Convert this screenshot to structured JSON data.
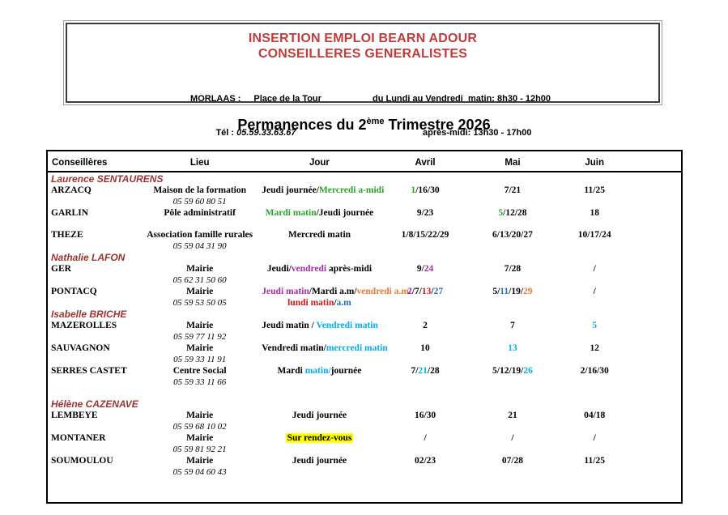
{
  "colors": {
    "black": "#000000",
    "green": "#2DA32D",
    "magenta": "#A82BA4",
    "red": "#CE1A1A",
    "blue": "#1F6FC5",
    "orange": "#E97A32",
    "cyan": "#00AEEF",
    "title_red": "#C23B3B",
    "group_red": "#9E3431",
    "highlight_yellow": "#FFFF00"
  },
  "header_box": {
    "title_line1": "INSERTION EMPLOI BEARN ADOUR",
    "title_line2": "CONSEILLERES GENERALISTES",
    "location_label": "MORLAAS :",
    "location_value": "Place de la Tour",
    "phone_label": "Tél :",
    "phone_value": "05.59.33.63.67",
    "hours_line1": "du Lundi au Vendredi  matin: 8h30 - 12h00",
    "hours_line2": "après-midi: 13h30 - 17h00"
  },
  "page_title": {
    "prefix": "Permanences du 2",
    "superscript": "ème",
    "suffix": " Trimestre 2026"
  },
  "table": {
    "columns": [
      "Conseillères",
      "Lieu",
      "Jour",
      "Avril",
      "Mai",
      "Juin"
    ],
    "groups": [
      {
        "counselor": "Laurence SENTAURENS",
        "rows": [
          {
            "city": "ARZACQ",
            "lieu": "Maison de la formation",
            "phone": "05 59 60 80 51",
            "jour": [
              [
                {
                  "t": "Jeudi journée/"
                },
                {
                  "t": "Mercredi a-midi",
                  "c": "green"
                }
              ]
            ],
            "avril": [
              {
                "t": "1",
                "c": "green"
              },
              {
                "t": "/16/30"
              }
            ],
            "mai": [
              {
                "t": "7/21"
              }
            ],
            "juin": [
              {
                "t": "11/25"
              }
            ]
          },
          {
            "city": "GARLIN",
            "lieu": "Pôle administratif",
            "phone": null,
            "gap_after": true,
            "jour": [
              [
                {
                  "t": "Mardi matin",
                  "c": "green"
                },
                {
                  "t": "/Jeudi journée"
                }
              ]
            ],
            "avril": [
              {
                "t": "9/23"
              }
            ],
            "mai": [
              {
                "t": "5",
                "c": "green"
              },
              {
                "t": "/12/28"
              }
            ],
            "juin": [
              {
                "t": "18"
              }
            ]
          },
          {
            "city": "THEZE",
            "lieu": "Association famille rurales",
            "phone": "05 59 04 31 90",
            "jour": [
              [
                {
                  "t": "Mercredi matin"
                }
              ]
            ],
            "avril": [
              {
                "t": "1/8/15/22/29"
              }
            ],
            "mai": [
              {
                "t": "6/13/20/27"
              }
            ],
            "juin": [
              {
                "t": "10/17/24"
              }
            ]
          }
        ]
      },
      {
        "counselor": "Nathalie LAFON",
        "rows": [
          {
            "city": "GER",
            "lieu": "Mairie",
            "phone": "05 62 31 50 60",
            "jour": [
              [
                {
                  "t": "Jeudi/"
                },
                {
                  "t": "vendredi",
                  "c": "magenta"
                },
                {
                  "t": " après-midi"
                }
              ]
            ],
            "avril": [
              {
                "t": "9/"
              },
              {
                "t": "24",
                "c": "magenta"
              }
            ],
            "mai": [
              {
                "t": "7/28"
              }
            ],
            "juin": [
              {
                "t": "/"
              }
            ]
          },
          {
            "city": "PONTACQ",
            "lieu": "Mairie",
            "phone": "05 59 53 50 05",
            "jour": [
              [
                {
                  "t": "Jeudi matin",
                  "c": "magenta"
                },
                {
                  "t": "/Mardi a.m/"
                },
                {
                  "t": "vendredi a.m",
                  "c": "orange"
                },
                {
                  "t": "/"
                }
              ],
              [
                {
                  "t": "lundi matin",
                  "c": "red"
                },
                {
                  "t": "/"
                },
                {
                  "t": "a.m",
                  "c": "blue"
                }
              ]
            ],
            "avril": [
              {
                "t": "2",
                "c": "magenta"
              },
              {
                "t": "/7/"
              },
              {
                "t": "13",
                "c": "red"
              },
              {
                "t": "/"
              },
              {
                "t": "27",
                "c": "blue"
              }
            ],
            "mai": [
              {
                "t": "5/"
              },
              {
                "t": "11",
                "c": "blue"
              },
              {
                "t": "/19/"
              },
              {
                "t": "29",
                "c": "orange"
              }
            ],
            "juin": [
              {
                "t": "/"
              }
            ]
          }
        ]
      },
      {
        "counselor": "Isabelle BRICHE",
        "rows": [
          {
            "city": "MAZEROLLES",
            "lieu": "Mairie",
            "phone": "05 59 77 11 92",
            "jour": [
              [
                {
                  "t": "Jeudi matin / "
                },
                {
                  "t": "Vendredi matin",
                  "c": "cyan"
                }
              ]
            ],
            "avril": [
              {
                "t": "2"
              }
            ],
            "mai": [
              {
                "t": "7"
              }
            ],
            "juin": [
              {
                "t": "5",
                "c": "cyan"
              }
            ]
          },
          {
            "city": "SAUVAGNON",
            "lieu": "Mairie",
            "phone": "05 59 33 11 91",
            "jour": [
              [
                {
                  "t": "Vendredi matin/"
                },
                {
                  "t": "mercredi matin",
                  "c": "cyan"
                }
              ]
            ],
            "avril": [
              {
                "t": "10"
              }
            ],
            "mai": [
              {
                "t": "13",
                "c": "cyan"
              }
            ],
            "juin": [
              {
                "t": "12"
              }
            ]
          },
          {
            "city": "SERRES CASTET",
            "lieu": "Centre Social",
            "phone": "05 59 33 11 66",
            "gap_after": true,
            "jour": [
              [
                {
                  "t": "Mardi "
                },
                {
                  "t": "matin/",
                  "c": "cyan"
                },
                {
                  "t": "journée"
                }
              ]
            ],
            "avril": [
              {
                "t": "7/"
              },
              {
                "t": "21",
                "c": "cyan"
              },
              {
                "t": "/28"
              }
            ],
            "mai": [
              {
                "t": "5/12/19/"
              },
              {
                "t": "26",
                "c": "cyan"
              }
            ],
            "juin": [
              {
                "t": "2/16/30"
              }
            ]
          }
        ]
      },
      {
        "counselor": "Hélène CAZENAVE",
        "rows": [
          {
            "city": "LEMBEYE",
            "lieu": "Mairie",
            "phone": "05 59 68 10 02",
            "jour": [
              [
                {
                  "t": "Jeudi journée"
                }
              ]
            ],
            "avril": [
              {
                "t": "16/30"
              }
            ],
            "mai": [
              {
                "t": "21"
              }
            ],
            "juin": [
              {
                "t": "04/18"
              }
            ]
          },
          {
            "city": "MONTANER",
            "lieu": "Mairie",
            "phone": "05 59 81 92 21",
            "jour": [
              [
                {
                  "t": "Sur rendez-vous",
                  "hl": true
                }
              ]
            ],
            "avril": [
              {
                "t": "/"
              }
            ],
            "mai": [
              {
                "t": "/"
              }
            ],
            "juin": [
              {
                "t": "/"
              }
            ]
          },
          {
            "city": "SOUMOULOU",
            "lieu": "Mairie",
            "phone": "05 59 04 60 43",
            "jour": [
              [
                {
                  "t": "Jeudi journée"
                }
              ]
            ],
            "avril": [
              {
                "t": "02/23"
              }
            ],
            "mai": [
              {
                "t": "07/28"
              }
            ],
            "juin": [
              {
                "t": "11/25"
              }
            ]
          }
        ]
      }
    ]
  }
}
